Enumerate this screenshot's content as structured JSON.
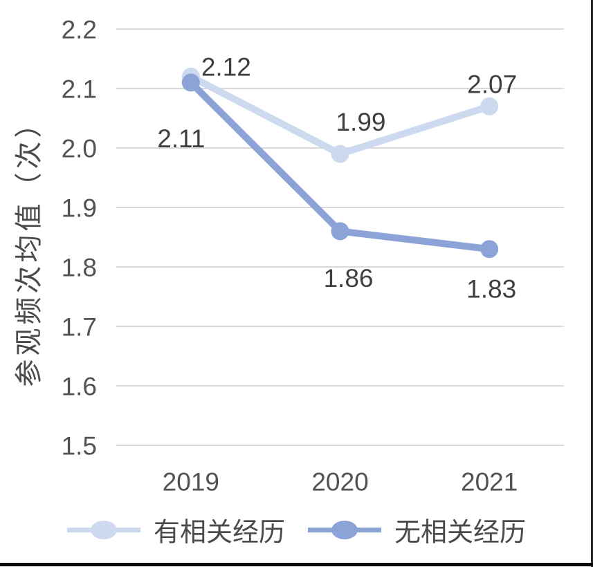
{
  "chart_data": {
    "type": "line",
    "title": "",
    "ylabel": "参观频次均值（次）",
    "xlabel": "",
    "categories": [
      "2019",
      "2020",
      "2021"
    ],
    "series": [
      {
        "name": "有相关经历",
        "values": [
          2.12,
          1.99,
          2.07
        ],
        "data_labels": [
          "2.12",
          "1.99",
          "2.07"
        ],
        "color": "#CDD9EE"
      },
      {
        "name": "无相关经历",
        "values": [
          2.11,
          1.86,
          1.83
        ],
        "data_labels": [
          "2.11",
          "1.86",
          "1.83"
        ],
        "color": "#8CA3D8"
      }
    ],
    "y_axis": {
      "min": 1.5,
      "max": 2.2,
      "step": 0.1,
      "tick_labels": [
        "2.2",
        "2.1",
        "2.0",
        "1.9",
        "1.8",
        "1.7",
        "1.6",
        "1.5"
      ]
    },
    "grid": true,
    "gridline_color": "#D9D9D9",
    "axis_text_color": "#525252",
    "data_label_color": "#3F3F3F",
    "legend_position": "bottom"
  },
  "page": {
    "background": "#FFFFFF",
    "cell_border_color": "#262626"
  }
}
